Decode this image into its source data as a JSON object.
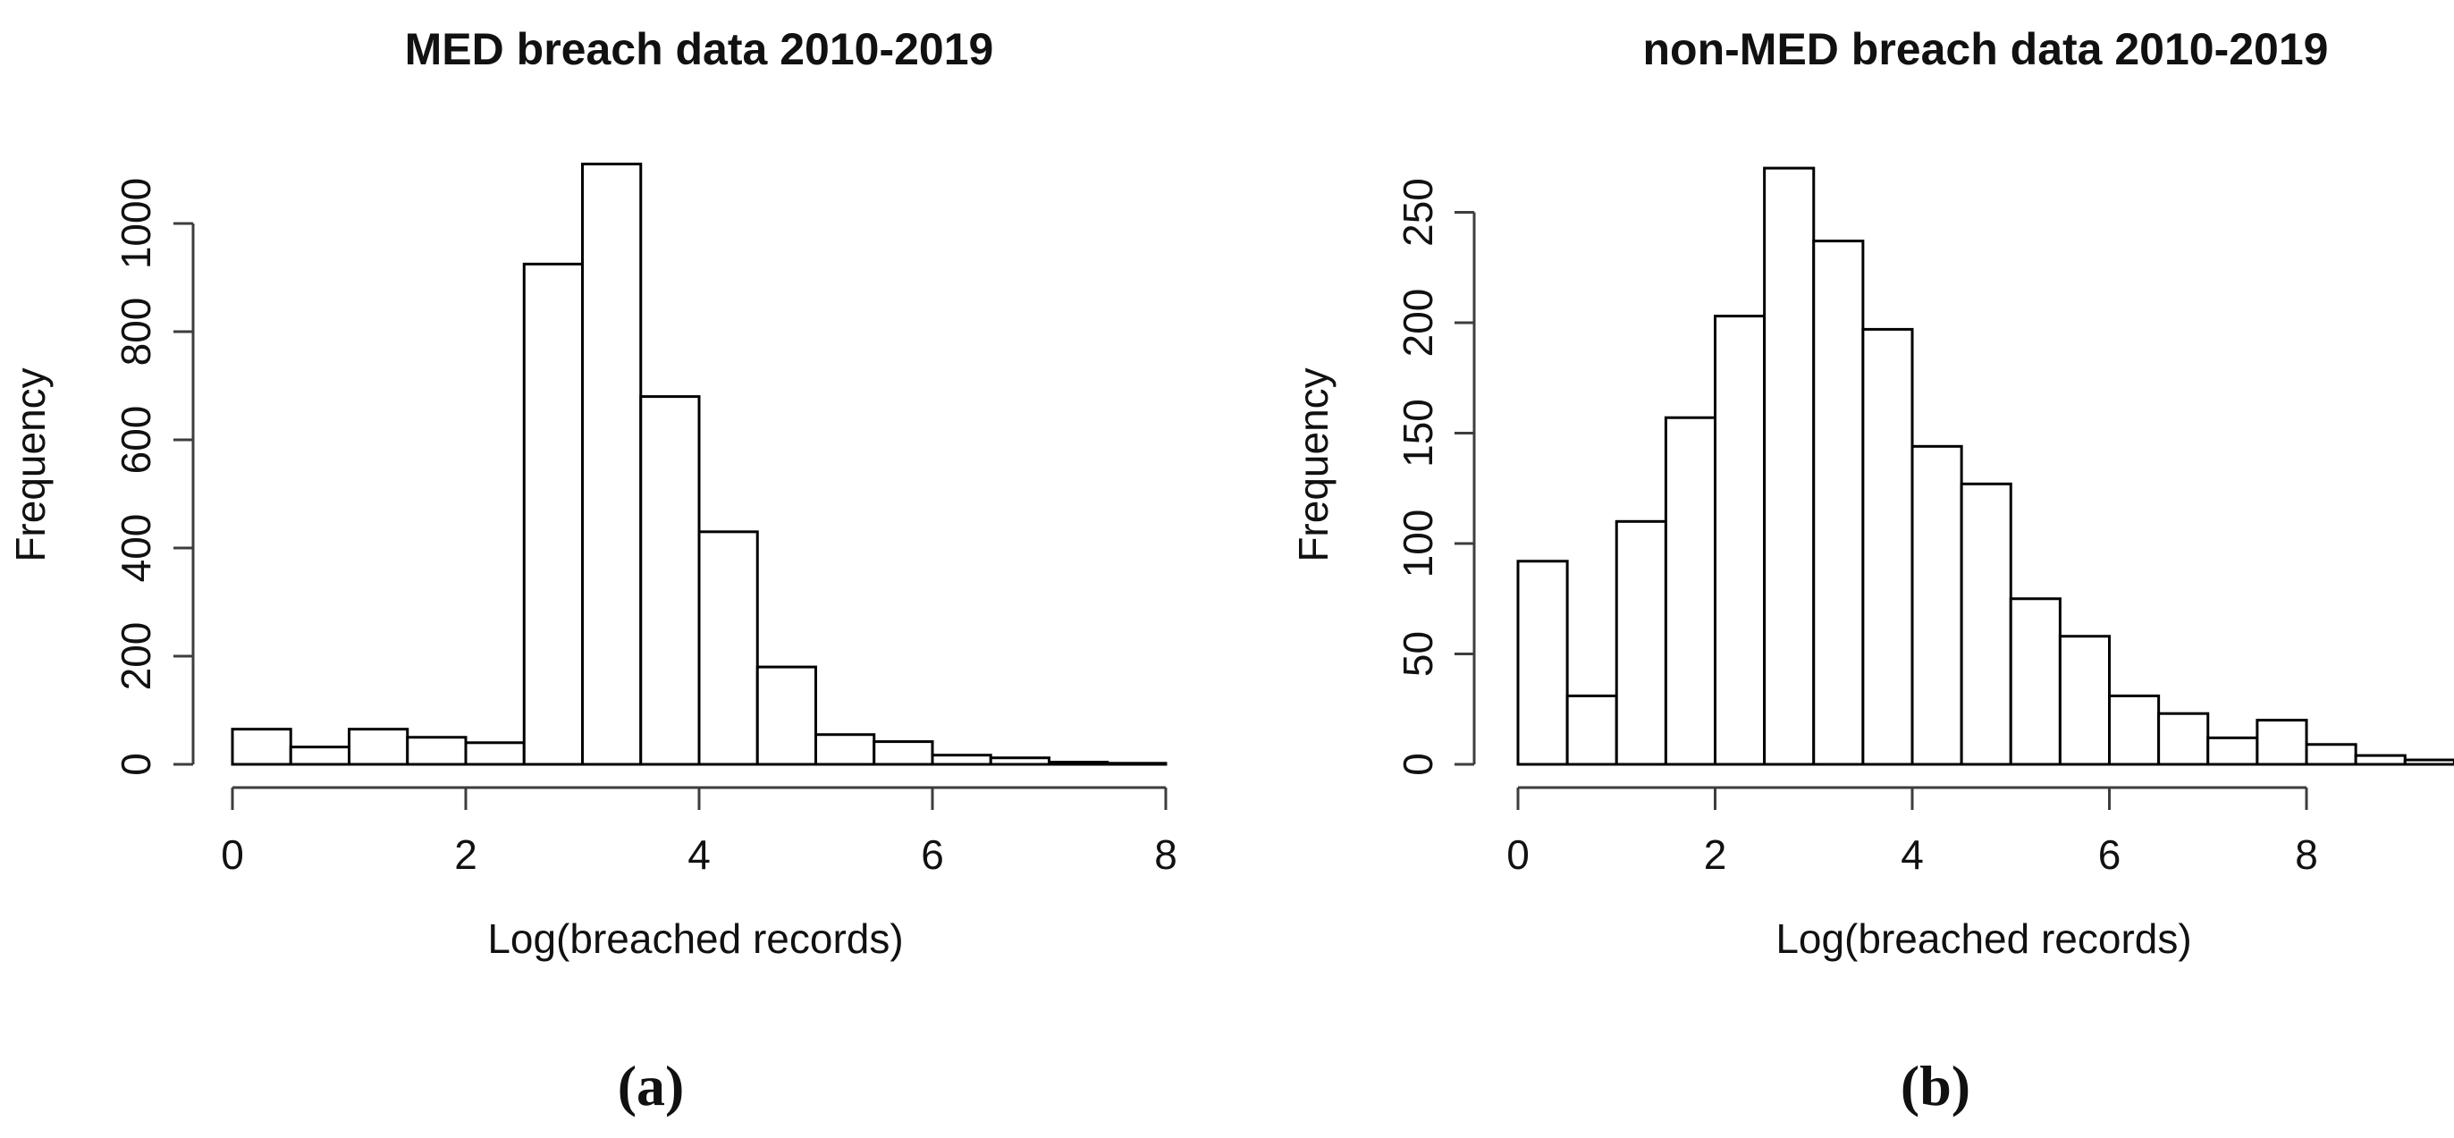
{
  "figure": {
    "background": "#ffffff"
  },
  "colors": {
    "bar_fill": "#ffffff",
    "bar_stroke": "#000000",
    "axis": "#3d3d3d",
    "text": "#111111"
  },
  "chart_data": [
    {
      "type": "bar",
      "subtype": "histogram",
      "title": "MED breach data 2010-2019",
      "xlabel": "Log(breached records)",
      "ylabel": "Frequency",
      "panel_label": "(a)",
      "bin_start": 0,
      "bin_width": 0.5,
      "values": [
        65,
        32,
        65,
        50,
        40,
        925,
        1110,
        680,
        430,
        180,
        55,
        42,
        17,
        12,
        4,
        2
      ],
      "x_ticks": [
        0,
        2,
        4,
        6,
        8
      ],
      "y_ticks": [
        0,
        200,
        400,
        600,
        800,
        1000
      ],
      "xlim": [
        0,
        8
      ],
      "ylim": [
        0,
        1110
      ],
      "grid": "off",
      "legend": "none"
    },
    {
      "type": "bar",
      "subtype": "histogram",
      "title": "non-MED breach data 2010-2019",
      "xlabel": "Log(breached records)",
      "ylabel": "Frequency",
      "panel_label": "(b)",
      "bin_start": 0,
      "bin_width": 0.5,
      "values": [
        92,
        31,
        110,
        157,
        203,
        270,
        237,
        197,
        144,
        127,
        75,
        58,
        31,
        23,
        12,
        20,
        9,
        4,
        2
      ],
      "x_ticks": [
        0,
        2,
        4,
        6,
        8
      ],
      "y_ticks": [
        0,
        50,
        100,
        150,
        200,
        250
      ],
      "xlim": [
        0,
        9.5
      ],
      "ylim": [
        0,
        270
      ],
      "grid": "off",
      "legend": "none"
    }
  ]
}
